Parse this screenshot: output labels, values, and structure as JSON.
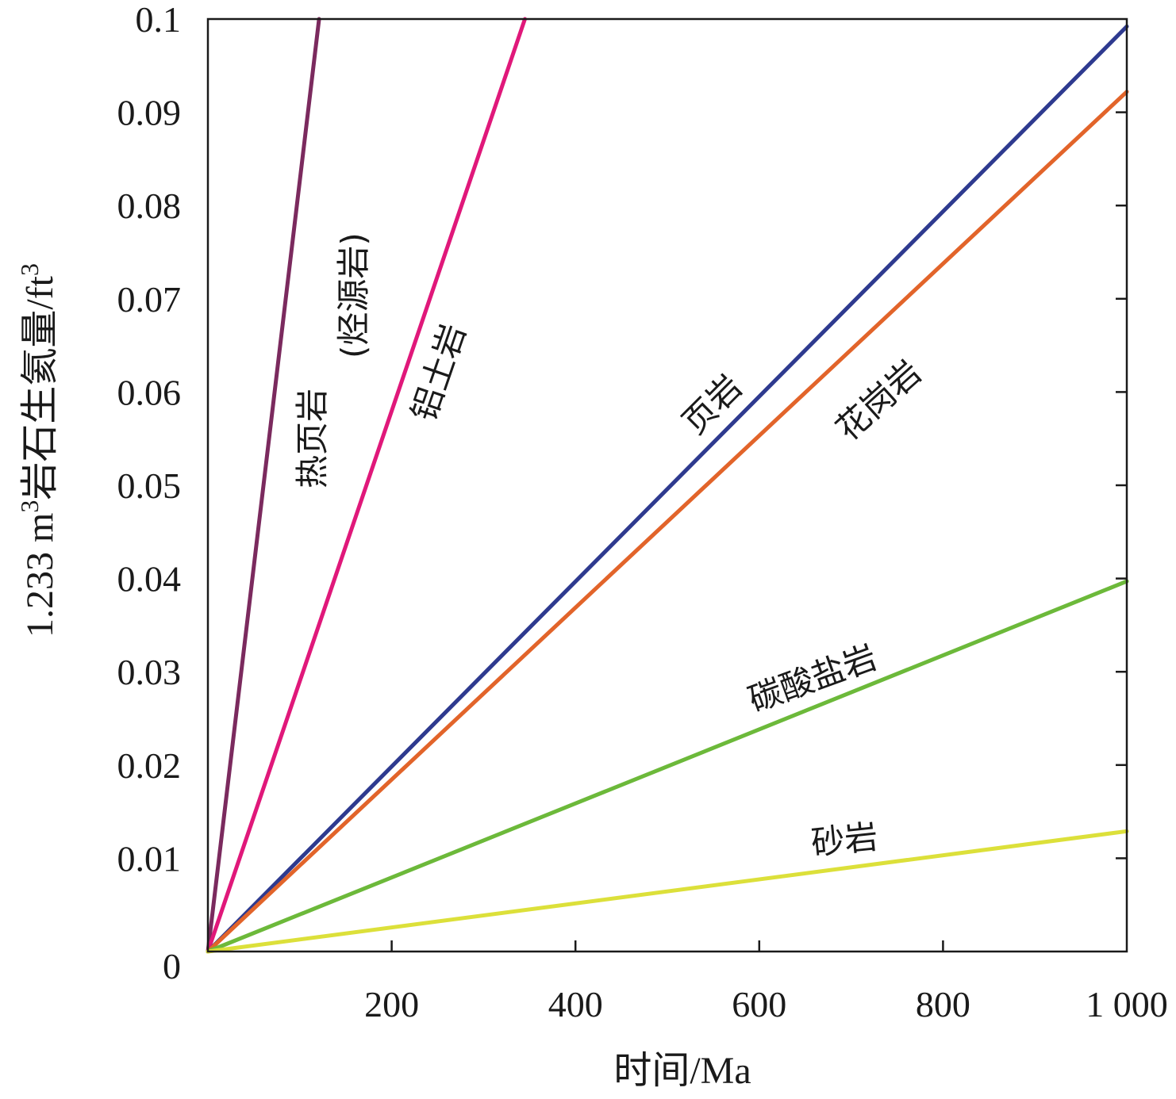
{
  "chart_data": {
    "type": "line",
    "xlabel": "时间/Ma",
    "ylabel": "1.233 m³岩石生氦量/ft³",
    "ylabel_parts": {
      "prefix": "1.233 m",
      "sup1": "3",
      "middle": "岩石生氦量/ft",
      "sup2": "3"
    },
    "xlim": [
      0,
      1000
    ],
    "ylim": [
      0,
      0.1
    ],
    "x_ticks": [
      200,
      400,
      600,
      800,
      1000
    ],
    "x_tick_labels": [
      "200",
      "400",
      "600",
      "800",
      "1 000"
    ],
    "y_ticks": [
      0,
      0.01,
      0.02,
      0.03,
      0.04,
      0.05,
      0.06,
      0.07,
      0.08,
      0.09,
      0.1
    ],
    "y_tick_labels": [
      "0",
      "0.01",
      "0.02",
      "0.03",
      "0.04",
      "0.05",
      "0.06",
      "0.07",
      "0.08",
      "0.09",
      "0.1"
    ],
    "grid": false,
    "series": [
      {
        "name": "热页岩(烃源岩)",
        "color": "#7b2a5e",
        "x": [
          0,
          121
        ],
        "y": [
          0,
          0.1
        ]
      },
      {
        "name": "铝土岩",
        "color": "#e0187a",
        "x": [
          0,
          345
        ],
        "y": [
          0,
          0.1
        ]
      },
      {
        "name": "页岩",
        "color": "#2e3a8f",
        "x": [
          0,
          1000
        ],
        "y": [
          0,
          0.0992
        ]
      },
      {
        "name": "花岗岩",
        "color": "#e2642a",
        "x": [
          0,
          1000
        ],
        "y": [
          0,
          0.0922
        ]
      },
      {
        "name": "碳酸盐岩",
        "color": "#6cb93a",
        "x": [
          0,
          1000
        ],
        "y": [
          0,
          0.0397
        ]
      },
      {
        "name": "砂岩",
        "color": "#dce03a",
        "x": [
          0,
          1000
        ],
        "y": [
          0,
          0.0129
        ]
      }
    ],
    "annotations": [
      {
        "text": "热页岩",
        "series": "热页岩(烃源岩)"
      },
      {
        "text": "(烃源岩)",
        "series": "热页岩(烃源岩)"
      },
      {
        "text": "铝土岩",
        "series": "铝土岩"
      },
      {
        "text": "页岩",
        "series": "页岩"
      },
      {
        "text": "花岗岩",
        "series": "花岗岩"
      },
      {
        "text": "碳酸盐岩",
        "series": "碳酸盐岩"
      },
      {
        "text": "砂岩",
        "series": "砂岩"
      }
    ]
  }
}
